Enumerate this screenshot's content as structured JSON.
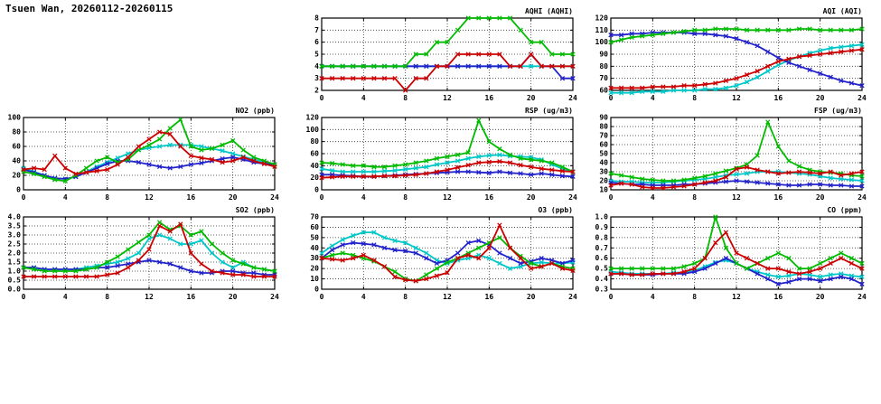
{
  "page": {
    "title": "Tsuen Wan, 20260112-20260115"
  },
  "colors": {
    "red": "#cc0000",
    "green": "#00bb00",
    "blue": "#2222cc",
    "cyan": "#00c8c8"
  },
  "chart_data": [
    {
      "id": "aqhi",
      "type": "line",
      "title": "AQHI (AQHI)",
      "xlim": [
        0,
        24
      ],
      "xtick_step": 4,
      "x_step": 1,
      "ylim": [
        2,
        8
      ],
      "ytick_step": 1,
      "ydecimals": 0,
      "series": [
        {
          "name": "cyan",
          "color": "cyan",
          "values": [
            4,
            4,
            4,
            4,
            4,
            4,
            4,
            4,
            4,
            4,
            4,
            4,
            4,
            4,
            4,
            4,
            4,
            4,
            4,
            4,
            4,
            4,
            4,
            4,
            4
          ]
        },
        {
          "name": "blue",
          "color": "blue",
          "values": [
            4,
            4,
            4,
            4,
            4,
            4,
            4,
            4,
            4,
            4,
            4,
            4,
            4,
            4,
            4,
            4,
            4,
            4,
            4,
            4,
            5,
            4,
            4,
            3,
            3
          ]
        },
        {
          "name": "green",
          "color": "green",
          "values": [
            4,
            4,
            4,
            4,
            4,
            4,
            4,
            4,
            4,
            5,
            5,
            6,
            6,
            7,
            8,
            8,
            8,
            8,
            8,
            7,
            6,
            6,
            5,
            5,
            5
          ]
        },
        {
          "name": "red",
          "color": "red",
          "values": [
            3,
            3,
            3,
            3,
            3,
            3,
            3,
            3,
            2,
            3,
            3,
            4,
            4,
            5,
            5,
            5,
            5,
            5,
            4,
            4,
            5,
            4,
            4,
            4,
            4
          ]
        }
      ]
    },
    {
      "id": "aqi",
      "type": "line",
      "title": "AQI (AQI)",
      "xlim": [
        0,
        24
      ],
      "xtick_step": 4,
      "x_step": 1,
      "ylim": [
        60,
        120
      ],
      "ytick_step": 10,
      "ydecimals": 0,
      "series": [
        {
          "name": "cyan",
          "color": "cyan",
          "values": [
            58,
            58,
            58,
            59,
            59,
            59,
            60,
            60,
            60,
            61,
            61,
            62,
            64,
            67,
            71,
            76,
            81,
            85,
            88,
            91,
            93,
            95,
            96,
            97,
            98
          ]
        },
        {
          "name": "blue",
          "color": "blue",
          "values": [
            106,
            106,
            107,
            107,
            108,
            108,
            108,
            108,
            107,
            107,
            106,
            105,
            103,
            100,
            97,
            92,
            87,
            83,
            80,
            77,
            74,
            71,
            68,
            66,
            64
          ]
        },
        {
          "name": "green",
          "color": "green",
          "values": [
            100,
            102,
            104,
            105,
            106,
            107,
            108,
            109,
            110,
            110,
            111,
            111,
            111,
            110,
            110,
            110,
            110,
            110,
            111,
            111,
            110,
            110,
            110,
            110,
            111
          ]
        },
        {
          "name": "red",
          "color": "red",
          "values": [
            62,
            62,
            62,
            62,
            63,
            63,
            63,
            64,
            64,
            65,
            66,
            68,
            70,
            73,
            76,
            80,
            84,
            86,
            88,
            89,
            90,
            91,
            92,
            93,
            94
          ]
        }
      ]
    },
    {
      "id": "no2",
      "type": "line",
      "title": "NO2 (ppb)",
      "xlim": [
        0,
        24
      ],
      "xtick_step": 4,
      "x_step": 1,
      "ylim": [
        0,
        100
      ],
      "ytick_step": 20,
      "ydecimals": 0,
      "series": [
        {
          "name": "cyan",
          "color": "cyan",
          "values": [
            30,
            25,
            20,
            16,
            15,
            18,
            25,
            32,
            38,
            44,
            50,
            55,
            58,
            60,
            62,
            62,
            62,
            60,
            57,
            54,
            50,
            46,
            42,
            38,
            35
          ]
        },
        {
          "name": "blue",
          "color": "blue",
          "values": [
            28,
            24,
            20,
            16,
            15,
            18,
            24,
            30,
            36,
            40,
            40,
            38,
            35,
            32,
            30,
            32,
            35,
            37,
            40,
            43,
            45,
            42,
            38,
            36,
            35
          ]
        },
        {
          "name": "green",
          "color": "green",
          "values": [
            25,
            22,
            18,
            14,
            12,
            20,
            30,
            40,
            45,
            38,
            42,
            55,
            62,
            70,
            85,
            97,
            60,
            55,
            57,
            62,
            68,
            55,
            45,
            40,
            35
          ]
        },
        {
          "name": "red",
          "color": "red",
          "values": [
            28,
            30,
            28,
            47,
            30,
            22,
            24,
            26,
            28,
            35,
            45,
            60,
            70,
            80,
            77,
            60,
            47,
            44,
            42,
            38,
            40,
            45,
            40,
            36,
            32
          ]
        }
      ]
    },
    {
      "id": "rsp",
      "type": "line",
      "title": "RSP (ug/m3)",
      "xlim": [
        0,
        24
      ],
      "xtick_step": 4,
      "x_step": 1,
      "ylim": [
        0,
        120
      ],
      "ytick_step": 20,
      "ydecimals": 0,
      "series": [
        {
          "name": "cyan",
          "color": "cyan",
          "values": [
            35,
            32,
            30,
            30,
            30,
            30,
            31,
            32,
            34,
            36,
            38,
            42,
            45,
            48,
            52,
            55,
            57,
            58,
            56,
            55,
            54,
            50,
            42,
            35,
            30
          ]
        },
        {
          "name": "blue",
          "color": "blue",
          "values": [
            25,
            25,
            24,
            23,
            22,
            22,
            23,
            24,
            25,
            26,
            27,
            28,
            29,
            30,
            30,
            29,
            28,
            30,
            28,
            27,
            25,
            27,
            25,
            23,
            22
          ]
        },
        {
          "name": "green",
          "color": "green",
          "values": [
            45,
            44,
            42,
            40,
            40,
            38,
            38,
            40,
            42,
            45,
            48,
            52,
            55,
            58,
            62,
            115,
            80,
            68,
            58,
            52,
            50,
            48,
            45,
            38,
            30
          ]
        },
        {
          "name": "red",
          "color": "red",
          "values": [
            20,
            21,
            22,
            22,
            22,
            22,
            23,
            23,
            24,
            25,
            27,
            30,
            33,
            37,
            41,
            45,
            46,
            47,
            45,
            41,
            38,
            35,
            33,
            31,
            30
          ]
        }
      ]
    },
    {
      "id": "fsp",
      "type": "line",
      "title": "FSP (ug/m3)",
      "xlim": [
        0,
        24
      ],
      "xtick_step": 4,
      "x_step": 1,
      "ylim": [
        10,
        90
      ],
      "ytick_step": 10,
      "ydecimals": 0,
      "series": [
        {
          "name": "cyan",
          "color": "cyan",
          "values": [
            20,
            19,
            19,
            18,
            18,
            18,
            19,
            20,
            21,
            22,
            24,
            26,
            27,
            28,
            30,
            30,
            30,
            29,
            28,
            27,
            25,
            23,
            22,
            21,
            20
          ]
        },
        {
          "name": "blue",
          "color": "blue",
          "values": [
            18,
            17,
            16,
            16,
            15,
            15,
            15,
            16,
            16,
            17,
            18,
            19,
            20,
            19,
            18,
            17,
            16,
            15,
            15,
            16,
            16,
            15,
            15,
            14,
            14
          ]
        },
        {
          "name": "green",
          "color": "green",
          "values": [
            28,
            26,
            24,
            22,
            21,
            20,
            20,
            21,
            23,
            25,
            28,
            31,
            34,
            38,
            48,
            85,
            58,
            42,
            36,
            32,
            30,
            29,
            28,
            26,
            25
          ]
        },
        {
          "name": "red",
          "color": "red",
          "values": [
            15,
            17,
            16,
            13,
            12,
            12,
            13,
            14,
            16,
            18,
            20,
            24,
            33,
            35,
            32,
            30,
            28,
            29,
            30,
            29,
            28,
            30,
            26,
            28,
            30
          ]
        }
      ]
    },
    {
      "id": "so2",
      "type": "line",
      "title": "SO2 (ppb)",
      "xlim": [
        0,
        24
      ],
      "xtick_step": 4,
      "x_step": 1,
      "ylim": [
        0,
        4
      ],
      "ytick_step": 0.5,
      "ydecimals": 1,
      "series": [
        {
          "name": "cyan",
          "color": "cyan",
          "values": [
            1.2,
            1.2,
            1.1,
            1.1,
            1.1,
            1.1,
            1.2,
            1.3,
            1.4,
            1.5,
            1.7,
            2.0,
            2.8,
            3.0,
            2.8,
            2.5,
            2.5,
            2.7,
            2.0,
            1.5,
            1.2,
            1.5,
            1.2,
            1.1,
            1.0
          ]
        },
        {
          "name": "blue",
          "color": "blue",
          "values": [
            1.2,
            1.2,
            1.1,
            1.1,
            1.1,
            1.1,
            1.1,
            1.2,
            1.2,
            1.3,
            1.4,
            1.5,
            1.6,
            1.5,
            1.4,
            1.2,
            1.0,
            0.9,
            0.9,
            1.0,
            1.0,
            0.9,
            0.9,
            0.8,
            0.8
          ]
        },
        {
          "name": "green",
          "color": "green",
          "values": [
            1.2,
            1.1,
            1.0,
            1.0,
            1.0,
            1.0,
            1.1,
            1.2,
            1.5,
            1.8,
            2.2,
            2.6,
            3.0,
            3.7,
            3.3,
            3.5,
            3.0,
            3.2,
            2.5,
            2.0,
            1.6,
            1.4,
            1.2,
            1.1,
            1.0
          ]
        },
        {
          "name": "red",
          "color": "red",
          "values": [
            0.7,
            0.7,
            0.7,
            0.7,
            0.7,
            0.7,
            0.7,
            0.7,
            0.8,
            0.9,
            1.2,
            1.6,
            2.2,
            3.5,
            3.2,
            3.6,
            2.0,
            1.4,
            1.0,
            0.9,
            0.8,
            0.8,
            0.7,
            0.7,
            0.7
          ]
        }
      ]
    },
    {
      "id": "o3",
      "type": "line",
      "title": "O3 (ppb)",
      "xlim": [
        0,
        24
      ],
      "xtick_step": 4,
      "x_step": 1,
      "ylim": [
        0,
        70
      ],
      "ytick_step": 10,
      "ydecimals": 0,
      "series": [
        {
          "name": "cyan",
          "color": "cyan",
          "values": [
            35,
            42,
            48,
            52,
            55,
            55,
            50,
            47,
            45,
            40,
            35,
            28,
            25,
            28,
            30,
            33,
            30,
            25,
            20,
            22,
            25,
            26,
            25,
            25,
            26
          ]
        },
        {
          "name": "blue",
          "color": "blue",
          "values": [
            30,
            38,
            43,
            45,
            44,
            43,
            40,
            38,
            37,
            35,
            30,
            25,
            28,
            35,
            45,
            47,
            43,
            35,
            30,
            25,
            27,
            30,
            28,
            25,
            28
          ]
        },
        {
          "name": "green",
          "color": "green",
          "values": [
            30,
            33,
            35,
            33,
            30,
            27,
            22,
            17,
            10,
            8,
            14,
            20,
            26,
            30,
            35,
            40,
            45,
            50,
            40,
            32,
            25,
            22,
            25,
            22,
            20
          ]
        },
        {
          "name": "red",
          "color": "red",
          "values": [
            30,
            29,
            28,
            30,
            33,
            28,
            22,
            12,
            9,
            8,
            10,
            13,
            16,
            30,
            33,
            30,
            40,
            62,
            40,
            30,
            20,
            22,
            25,
            20,
            18
          ]
        }
      ]
    },
    {
      "id": "co",
      "type": "line",
      "title": "CO (ppm)",
      "xlim": [
        0,
        24
      ],
      "xtick_step": 4,
      "x_step": 1,
      "ylim": [
        0.3,
        1.0
      ],
      "ytick_step": 0.1,
      "ydecimals": 1,
      "series": [
        {
          "name": "cyan",
          "color": "cyan",
          "values": [
            0.47,
            0.46,
            0.45,
            0.45,
            0.45,
            0.45,
            0.46,
            0.46,
            0.48,
            0.52,
            0.56,
            0.58,
            0.55,
            0.5,
            0.47,
            0.44,
            0.42,
            0.43,
            0.45,
            0.44,
            0.42,
            0.44,
            0.45,
            0.43,
            0.42
          ]
        },
        {
          "name": "blue",
          "color": "blue",
          "values": [
            0.45,
            0.45,
            0.44,
            0.44,
            0.44,
            0.45,
            0.45,
            0.45,
            0.47,
            0.5,
            0.55,
            0.6,
            0.55,
            0.5,
            0.45,
            0.4,
            0.35,
            0.37,
            0.4,
            0.4,
            0.38,
            0.4,
            0.42,
            0.4,
            0.35
          ]
        },
        {
          "name": "green",
          "color": "green",
          "values": [
            0.5,
            0.5,
            0.5,
            0.5,
            0.5,
            0.5,
            0.5,
            0.52,
            0.55,
            0.6,
            1.0,
            0.7,
            0.55,
            0.5,
            0.55,
            0.6,
            0.65,
            0.6,
            0.5,
            0.5,
            0.55,
            0.6,
            0.65,
            0.6,
            0.55
          ]
        },
        {
          "name": "red",
          "color": "red",
          "values": [
            0.45,
            0.45,
            0.44,
            0.44,
            0.45,
            0.45,
            0.45,
            0.47,
            0.5,
            0.6,
            0.75,
            0.85,
            0.65,
            0.6,
            0.55,
            0.5,
            0.5,
            0.47,
            0.45,
            0.47,
            0.5,
            0.55,
            0.6,
            0.55,
            0.5
          ]
        }
      ]
    }
  ]
}
